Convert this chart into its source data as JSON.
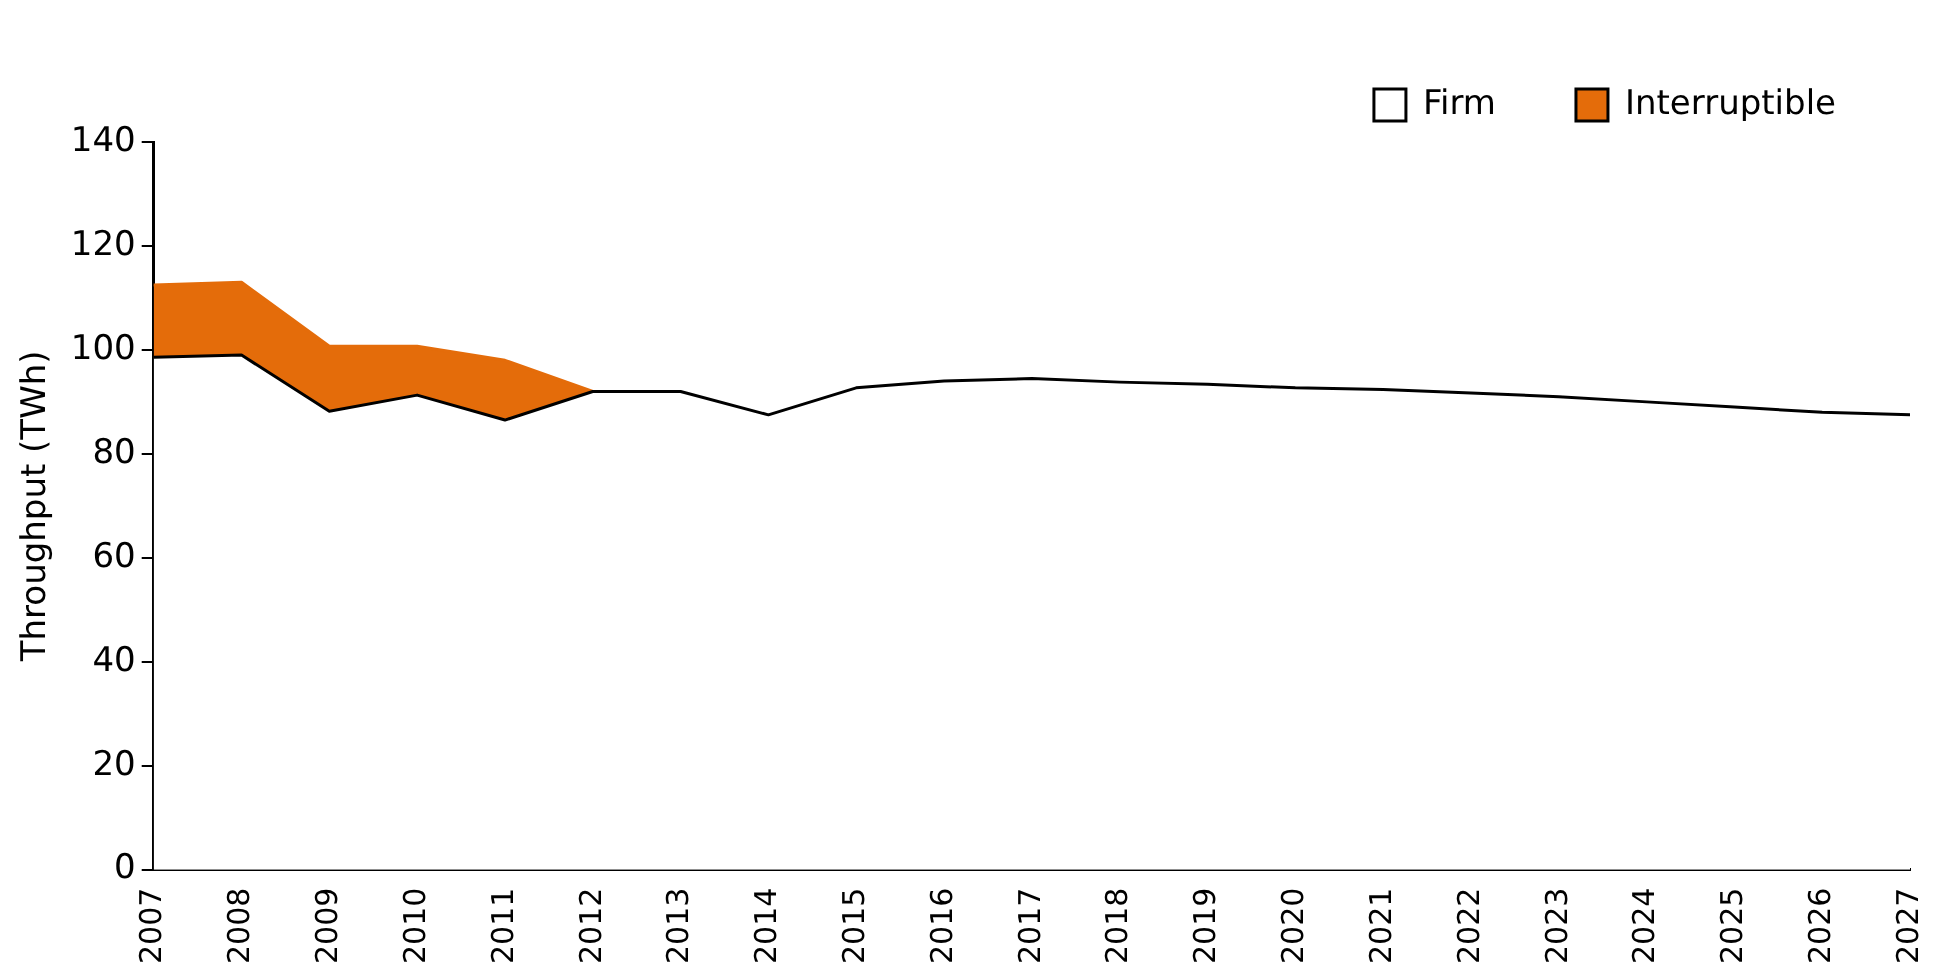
{
  "chart_data": {
    "type": "area",
    "stacked": true,
    "ylabel": "Throughput (TWh)",
    "categories": [
      "2007",
      "2008",
      "2009",
      "2010",
      "2011",
      "2012",
      "2013",
      "2014",
      "2015",
      "2016",
      "2017",
      "2018",
      "2019",
      "2020",
      "2021",
      "2022",
      "2023",
      "2024",
      "2025",
      "2026",
      "2027"
    ],
    "series": [
      {
        "name": "Firm",
        "color": "#ffffff",
        "values": [
          98.6,
          99,
          88.2,
          91.3,
          86.5,
          92,
          92,
          87.5,
          92.7,
          94,
          94.5,
          93.8,
          93.4,
          92.7,
          92.4,
          91.7,
          91,
          90,
          89,
          88,
          87.5
        ]
      },
      {
        "name": "Interruptible",
        "color": "#e46c0a",
        "values": [
          13.9,
          14,
          12.5,
          9.4,
          11.5,
          0,
          null,
          null,
          null,
          null,
          null,
          null,
          null,
          null,
          null,
          null,
          null,
          null,
          null,
          null,
          null
        ]
      }
    ],
    "ylim": [
      0,
      140
    ],
    "yticks": [
      0,
      20,
      40,
      60,
      80,
      100,
      120,
      140
    ],
    "grid": false,
    "legend": "top right"
  }
}
